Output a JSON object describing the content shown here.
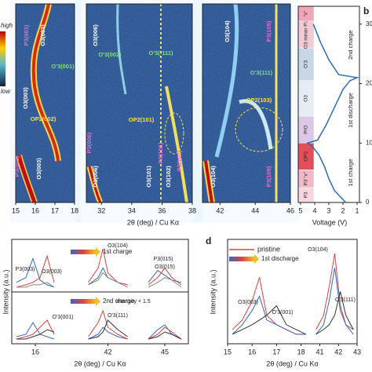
{
  "chart_data": [
    {
      "type": "heatmap",
      "xlabel": "2θ (deg) / Cu Kα",
      "panels": [
        {
          "xlim": [
            15,
            18
          ],
          "xticks": [
            15,
            16,
            17,
            18
          ]
        },
        {
          "xlim": [
            31,
            38
          ],
          "xticks": [
            32,
            34,
            36,
            38
          ]
        },
        {
          "xlim": [
            41,
            46
          ],
          "xticks": [
            42,
            44,
            46
          ]
        }
      ],
      "colorbar": {
        "high": "high",
        "low": "low"
      },
      "annotations": [
        {
          "text": "P3(003)",
          "color": "#e070d0"
        },
        {
          "text": "O3(003)",
          "color": "#ffffff"
        },
        {
          "text": "O'3(001)",
          "color": "#7be07b"
        },
        {
          "text": "O3(003)",
          "color": "#ffffff"
        },
        {
          "text": "OP2(002)",
          "color": "#ffe03a"
        },
        {
          "text": "P3(003)",
          "color": "#e070d0"
        },
        {
          "text": "O3(003)",
          "color": "#ffffff"
        },
        {
          "text": "O3(006)",
          "color": "#ffffff"
        },
        {
          "text": "O'3(002)",
          "color": "#7be07b"
        },
        {
          "text": "O'3(-111)",
          "color": "#7be07b"
        },
        {
          "text": "OP2(101)",
          "color": "#ffe03a"
        },
        {
          "text": "P3(006)",
          "color": "#e070d0"
        },
        {
          "text": "O3(006)",
          "color": "#ffffff"
        },
        {
          "text": "P3(101)",
          "color": "#e070d0"
        },
        {
          "text": "P3(102)",
          "color": "#e070d0"
        },
        {
          "text": "O3(101)",
          "color": "#ffffff"
        },
        {
          "text": "O3(102)",
          "color": "#ffffff"
        },
        {
          "text": "O3(104)",
          "color": "#ffffff"
        },
        {
          "text": "P3(105)",
          "color": "#e070d0"
        },
        {
          "text": "O'3(111)",
          "color": "#7be07b"
        },
        {
          "text": "OP2(103)",
          "color": "#ffe03a"
        },
        {
          "text": "O3(104)",
          "color": "#ffffff"
        },
        {
          "text": "P3(105)",
          "color": "#e070d0"
        }
      ]
    },
    {
      "type": "line",
      "panel_label": "b",
      "xlabel": "Voltage (V)",
      "x": [
        0,
        20,
        40,
        60,
        80,
        95,
        100,
        105,
        130,
        160,
        190,
        205,
        210,
        215,
        240,
        270,
        300
      ],
      "values": [
        1.8,
        2.6,
        3.0,
        3.3,
        3.7,
        4.2,
        4.5,
        3.8,
        3.2,
        2.6,
        2.0,
        1.5,
        1.0,
        2.3,
        3.0,
        3.6,
        4.1
      ],
      "color": "#2e6bb0",
      "vlim": [
        5,
        1
      ],
      "vticks": [
        5,
        4,
        3,
        2,
        1
      ],
      "tlim": [
        0,
        330
      ],
      "tticks": [
        0,
        100,
        200,
        300
      ],
      "phases": [
        {
          "label": "P3",
          "from": 0,
          "to": 25,
          "color": "#f6d6df"
        },
        {
          "label": "P3 \"x\"",
          "from": 25,
          "to": 55,
          "color": "#f1b9c8"
        },
        {
          "label": "OP2",
          "from": 55,
          "to": 100,
          "color": "#e0505a"
        },
        {
          "label": "P/O",
          "from": 100,
          "to": 145,
          "color": "#dcc8e6"
        },
        {
          "label": "O3",
          "from": 145,
          "to": 205,
          "color": "#e6ecf4"
        },
        {
          "label": "O'3",
          "from": 205,
          "to": 260,
          "color": "#c8d6e8"
        },
        {
          "label": "O3 minor P3",
          "from": 260,
          "to": 305,
          "color": "#f3c9d4"
        },
        {
          "label": "\"x\"",
          "from": 305,
          "to": 330,
          "color": "#f0a6b8"
        }
      ],
      "segments": [
        {
          "label": "1st charge",
          "at": 50
        },
        {
          "label": "1st discharge",
          "at": 155
        },
        {
          "label": "2nd charge",
          "at": 265
        }
      ]
    },
    {
      "type": "line",
      "arrow_label": "1st charge",
      "xsegments": [
        [
          15,
          17
        ],
        [
          40.8,
          43.2
        ],
        [
          44,
          46
        ]
      ],
      "ylim": [
        0,
        1.1
      ],
      "x": [
        15.2,
        15.6,
        15.9,
        16.2,
        16.5,
        16.8,
        41.2,
        41.6,
        41.8,
        42,
        42.4,
        42.8,
        44.3,
        44.7,
        45,
        45.3,
        45.7
      ],
      "series": [
        {
          "color": "#3a66c4",
          "values": [
            0.2,
            0.3,
            0.7,
            0.25,
            0.15,
            0.1,
            0.15,
            0.3,
            0.5,
            0.3,
            0.2,
            0.15,
            0.2,
            0.45,
            0.35,
            0.25,
            0.2
          ]
        },
        {
          "color": "#e04040",
          "values": [
            0.1,
            0.15,
            0.2,
            0.3,
            0.75,
            0.2,
            0.2,
            0.5,
            0.9,
            0.4,
            0.2,
            0.15,
            0.15,
            0.3,
            0.5,
            0.3,
            0.15
          ]
        },
        {
          "color": "#888888",
          "values": [
            0.1,
            0.1,
            0.15,
            0.15,
            0.2,
            0.1,
            0.15,
            0.25,
            0.4,
            0.3,
            0.2,
            0.1,
            0.1,
            0.2,
            0.3,
            0.25,
            0.1
          ]
        }
      ],
      "annotations": [
        "P3(003)",
        "O3(003)",
        "O3(104)",
        "P3(015)",
        "O3(015)"
      ]
    },
    {
      "type": "line",
      "arrow_label": "2nd charge",
      "xsegments": [
        [
          15,
          17
        ],
        [
          40.8,
          43.2
        ],
        [
          44,
          46
        ]
      ],
      "ylim": [
        0,
        1.1
      ],
      "xticks": [
        16,
        42,
        45
      ],
      "xlabel": "2θ (deg) / Cu Kα",
      "ylabel": "Intensity (a.u.)",
      "x": [
        15.2,
        15.6,
        15.9,
        16.2,
        16.5,
        16.8,
        41.2,
        41.6,
        41.8,
        42,
        42.4,
        42.8,
        44.3,
        44.7,
        45,
        45.3,
        45.7
      ],
      "series": [
        {
          "color": "#3a66c4",
          "values": [
            0.15,
            0.2,
            0.45,
            0.2,
            0.15,
            0.1,
            0.1,
            0.2,
            0.35,
            0.25,
            0.15,
            0.1,
            0.1,
            0.3,
            0.4,
            0.2,
            0.1
          ]
        },
        {
          "color": "#e04040",
          "values": [
            0.1,
            0.15,
            0.2,
            0.35,
            0.5,
            0.2,
            0.15,
            0.45,
            0.7,
            0.35,
            0.2,
            0.1,
            0.1,
            0.2,
            0.35,
            0.25,
            0.1
          ]
        },
        {
          "color": "#333333",
          "values": [
            0.1,
            0.1,
            0.15,
            0.2,
            0.3,
            0.25,
            0.1,
            0.15,
            0.25,
            0.5,
            0.3,
            0.15,
            0.1,
            0.15,
            0.25,
            0.2,
            0.1
          ]
        }
      ],
      "annotations": [
        "intensity × 1.5",
        "O'3(001)",
        "O'3(111)"
      ]
    },
    {
      "type": "line",
      "panel_label": "d",
      "arrow_label": "1st discharge",
      "xsegments": [
        [
          15,
          18.3
        ],
        [
          40.6,
          43
        ]
      ],
      "ylim": [
        0,
        1.1
      ],
      "xticks": [
        15,
        16,
        17,
        18,
        41,
        42,
        43
      ],
      "xlabel": "2θ (deg) / Cu Kα",
      "ylabel": "Intensity (a.u.)",
      "x": [
        15.2,
        15.6,
        16,
        16.3,
        16.6,
        17,
        17.4,
        17.8,
        18.2,
        40.8,
        41.2,
        41.5,
        41.8,
        42.1,
        42.4,
        42.8
      ],
      "series": [
        {
          "name": "pristine",
          "color": "#e04040",
          "values": [
            0.15,
            0.25,
            0.45,
            0.7,
            0.3,
            0.2,
            0.15,
            0.1,
            0.1,
            0.15,
            0.3,
            0.6,
            0.95,
            0.4,
            0.2,
            0.15
          ]
        },
        {
          "color": "#3a66c4",
          "values": [
            0.1,
            0.2,
            0.35,
            0.5,
            0.25,
            0.2,
            0.15,
            0.1,
            0.1,
            0.1,
            0.2,
            0.45,
            0.8,
            0.35,
            0.2,
            0.1
          ]
        },
        {
          "color": "#333333",
          "values": [
            0.1,
            0.15,
            0.2,
            0.25,
            0.3,
            0.4,
            0.2,
            0.15,
            0.1,
            0.1,
            0.15,
            0.2,
            0.3,
            0.55,
            0.3,
            0.15
          ]
        }
      ],
      "annotations": [
        "O3(003)",
        "O'3(001)",
        "O3(104)",
        "O'3(111)"
      ]
    }
  ]
}
